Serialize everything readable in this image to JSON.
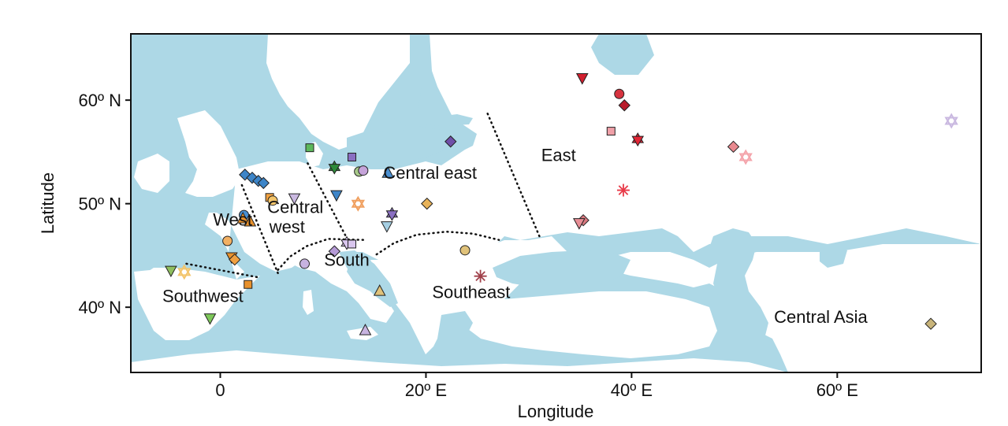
{
  "colors": {
    "sea": "#add8e6",
    "land": "#ffffff",
    "frame": "#111111",
    "divider": "#111111"
  },
  "axes": {
    "xlabel": "Longitude",
    "ylabel": "Latitude",
    "x_ticks": [
      {
        "value": 0,
        "label": "0"
      },
      {
        "value": 20,
        "label": "20º E"
      },
      {
        "value": 40,
        "label": "40º E"
      },
      {
        "value": 60,
        "label": "60º E"
      }
    ],
    "y_ticks": [
      {
        "value": 40,
        "label": "40º N"
      },
      {
        "value": 50,
        "label": "50º N"
      },
      {
        "value": 60,
        "label": "60º N"
      }
    ],
    "xlim": [
      -8.7,
      74
    ],
    "ylim": [
      33.7,
      66.4
    ]
  },
  "regions": [
    {
      "name": "West",
      "lon": 1.2,
      "lat": 47.9
    },
    {
      "name": "Central",
      "lon": 7.3,
      "lat": 49.1
    },
    {
      "name": "west",
      "lon": 6.5,
      "lat": 47.2
    },
    {
      "name": "South",
      "lon": 12.3,
      "lat": 44.0
    },
    {
      "name": "Southwest",
      "lon": -1.7,
      "lat": 40.5
    },
    {
      "name": "Central east",
      "lon": 20.4,
      "lat": 52.4
    },
    {
      "name": "East",
      "lon": 32.9,
      "lat": 54.1
    },
    {
      "name": "Southeast",
      "lon": 24.4,
      "lat": 40.9
    },
    {
      "name": "Central Asia",
      "lon": 58.4,
      "lat": 38.5
    }
  ],
  "dividers": [
    {
      "points": [
        [
          -3.3,
          44.2
        ],
        [
          3.6,
          42.9
        ]
      ]
    },
    {
      "points": [
        [
          2.1,
          51.8
        ],
        [
          5.6,
          43.3
        ]
      ]
    },
    {
      "points": [
        [
          8.5,
          53.9
        ],
        [
          12.5,
          46.3
        ]
      ]
    },
    {
      "points": [
        [
          5.6,
          43.6
        ],
        [
          6.8,
          44.9
        ],
        [
          8.4,
          45.9
        ],
        [
          10.5,
          46.6
        ],
        [
          14.0,
          46.5
        ]
      ]
    },
    {
      "points": [
        [
          15.2,
          45.1
        ],
        [
          16.9,
          46.2
        ],
        [
          19.1,
          47.0
        ],
        [
          22.0,
          47.3
        ],
        [
          24.6,
          47.1
        ],
        [
          27.1,
          46.5
        ]
      ]
    },
    {
      "points": [
        [
          26.0,
          58.7
        ],
        [
          31.1,
          46.7
        ]
      ]
    }
  ],
  "markers": [
    {
      "lon": -4.8,
      "lat": 43.5,
      "shape": "triangle-down",
      "color": "#8fbf5f"
    },
    {
      "lon": -3.5,
      "lat": 43.4,
      "shape": "star",
      "color": "#f3c56b",
      "open": true
    },
    {
      "lon": -1.0,
      "lat": 38.9,
      "shape": "triangle-down",
      "color": "#7ec85a"
    },
    {
      "lon": 0.7,
      "lat": 46.4,
      "shape": "circle",
      "color": "#f2b063"
    },
    {
      "lon": 1.1,
      "lat": 44.8,
      "shape": "triangle-down",
      "color": "#e8912c"
    },
    {
      "lon": 1.4,
      "lat": 44.6,
      "shape": "diamond",
      "color": "#f0a040"
    },
    {
      "lon": 2.7,
      "lat": 42.2,
      "shape": "square",
      "color": "#e8912c"
    },
    {
      "lon": 2.3,
      "lat": 48.9,
      "shape": "circle",
      "color": "#4a8fd0"
    },
    {
      "lon": 2.2,
      "lat": 48.6,
      "shape": "triangle",
      "color": "#e8912c"
    },
    {
      "lon": 2.9,
      "lat": 48.3,
      "shape": "triangle",
      "color": "#e8912c"
    },
    {
      "lon": 2.4,
      "lat": 52.8,
      "shape": "diamond",
      "color": "#3d85c8"
    },
    {
      "lon": 3.1,
      "lat": 52.5,
      "shape": "diamond",
      "color": "#3d85c8"
    },
    {
      "lon": 3.7,
      "lat": 52.2,
      "shape": "diamond",
      "color": "#3d85c8"
    },
    {
      "lon": 4.2,
      "lat": 52.0,
      "shape": "diamond",
      "color": "#3d85c8"
    },
    {
      "lon": 4.8,
      "lat": 50.6,
      "shape": "square",
      "color": "#f0a040"
    },
    {
      "lon": 5.1,
      "lat": 50.3,
      "shape": "circle",
      "color": "#f3c56b"
    },
    {
      "lon": 7.2,
      "lat": 50.5,
      "shape": "triangle-down",
      "color": "#c9b8e0"
    },
    {
      "lon": 8.7,
      "lat": 55.4,
      "shape": "square",
      "color": "#5cb85c"
    },
    {
      "lon": 8.2,
      "lat": 44.2,
      "shape": "circle",
      "color": "#c7b3e0"
    },
    {
      "lon": 11.1,
      "lat": 53.5,
      "shape": "star",
      "color": "#2e8b3a"
    },
    {
      "lon": 11.3,
      "lat": 50.8,
      "shape": "triangle-down",
      "color": "#3d85c8"
    },
    {
      "lon": 11.1,
      "lat": 45.4,
      "shape": "diamond",
      "color": "#b59ad6"
    },
    {
      "lon": 12.3,
      "lat": 46.2,
      "shape": "star",
      "color": "#d9c6ee"
    },
    {
      "lon": 12.8,
      "lat": 46.1,
      "shape": "square",
      "color": "#d9c6ee"
    },
    {
      "lon": 12.8,
      "lat": 54.5,
      "shape": "square",
      "color": "#8a6fc2"
    },
    {
      "lon": 13.5,
      "lat": 53.1,
      "shape": "circle",
      "color": "#a8c98a"
    },
    {
      "lon": 13.9,
      "lat": 53.2,
      "shape": "circle",
      "color": "#c5a3d9"
    },
    {
      "lon": 13.4,
      "lat": 50.0,
      "shape": "star",
      "color": "#f0a060",
      "open": true
    },
    {
      "lon": 16.3,
      "lat": 53.0,
      "shape": "triangle",
      "color": "#4a8fd0"
    },
    {
      "lon": 16.7,
      "lat": 49.0,
      "shape": "star",
      "color": "#8a6fc2"
    },
    {
      "lon": 16.2,
      "lat": 47.8,
      "shape": "triangle-down",
      "color": "#a5cfe3"
    },
    {
      "lon": 14.1,
      "lat": 37.8,
      "shape": "triangle",
      "color": "#c7b3e0"
    },
    {
      "lon": 15.5,
      "lat": 41.6,
      "shape": "triangle",
      "color": "#e0c27a"
    },
    {
      "lon": 20.1,
      "lat": 50.0,
      "shape": "diamond",
      "color": "#e8b35a"
    },
    {
      "lon": 22.4,
      "lat": 56.0,
      "shape": "diamond",
      "color": "#6f4fa8"
    },
    {
      "lon": 23.8,
      "lat": 45.5,
      "shape": "circle",
      "color": "#e0c27a"
    },
    {
      "lon": 25.3,
      "lat": 43.0,
      "shape": "asterisk",
      "color": "#a0404a"
    },
    {
      "lon": 35.2,
      "lat": 62.1,
      "shape": "triangle-down",
      "color": "#d21f2f"
    },
    {
      "lon": 38.8,
      "lat": 60.6,
      "shape": "circle",
      "color": "#d6333f"
    },
    {
      "lon": 39.3,
      "lat": 59.5,
      "shape": "diamond",
      "color": "#b81c2b"
    },
    {
      "lon": 38.0,
      "lat": 57.0,
      "shape": "square",
      "color": "#f0a0a8"
    },
    {
      "lon": 40.6,
      "lat": 56.2,
      "shape": "star",
      "color": "#e32636"
    },
    {
      "lon": 39.2,
      "lat": 51.3,
      "shape": "asterisk",
      "color": "#e83a48"
    },
    {
      "lon": 35.3,
      "lat": 48.4,
      "shape": "diamond",
      "color": "#d8787f"
    },
    {
      "lon": 34.9,
      "lat": 48.1,
      "shape": "triangle-down",
      "color": "#e88e96"
    },
    {
      "lon": 49.9,
      "lat": 55.5,
      "shape": "diamond",
      "color": "#e8898f"
    },
    {
      "lon": 51.1,
      "lat": 54.5,
      "shape": "star",
      "color": "#f4a4ab",
      "open": true
    },
    {
      "lon": 71.1,
      "lat": 58.0,
      "shape": "star",
      "color": "#c9b8e0",
      "open": true
    },
    {
      "lon": 69.1,
      "lat": 38.4,
      "shape": "diamond",
      "color": "#c8b47a"
    }
  ]
}
